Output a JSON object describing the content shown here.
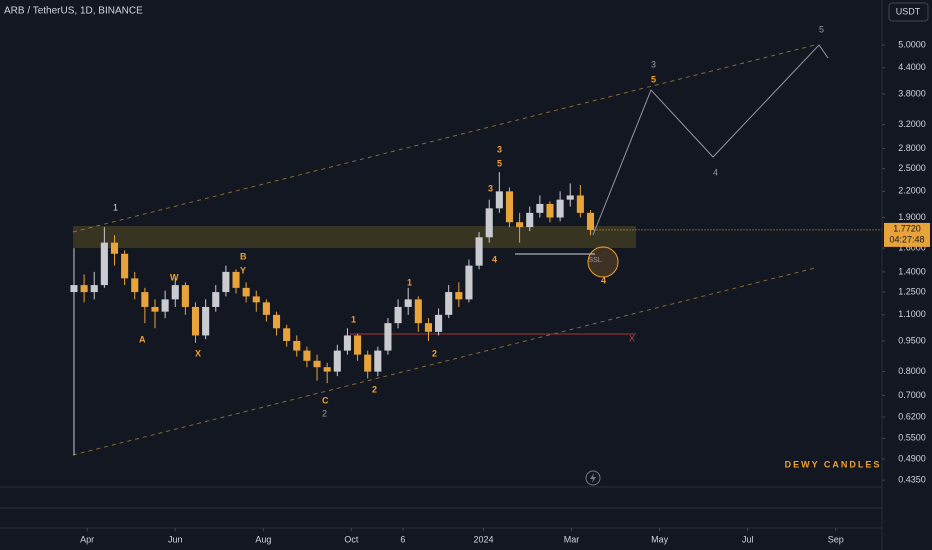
{
  "header": {
    "symbol": "ARB / TetherUS, 1D, BINANCE",
    "currency_button": "USDT"
  },
  "chart_data": {
    "type": "candlestick",
    "log_scale": true,
    "x": [
      -0.3,
      -0.07,
      0.16,
      0.39,
      0.62,
      0.85,
      1.08,
      1.31,
      1.54,
      1.77,
      2.0,
      2.23,
      2.46,
      2.69,
      2.92,
      3.15,
      3.38,
      3.61,
      3.84,
      4.07,
      4.3,
      4.53,
      4.76,
      4.99,
      5.22,
      5.45,
      5.68,
      5.91,
      6.14,
      6.37,
      6.6,
      6.83,
      7.06,
      7.29,
      7.52,
      7.75,
      7.98,
      8.21,
      8.44,
      8.67,
      8.9,
      9.13,
      9.36,
      9.59,
      9.82,
      10.05,
      10.28,
      10.51,
      10.74,
      10.97,
      11.2,
      11.43
    ],
    "open": [
      1.25,
      1.3,
      1.25,
      1.3,
      1.65,
      1.55,
      1.35,
      1.25,
      1.15,
      1.12,
      1.2,
      1.3,
      1.15,
      0.98,
      1.15,
      1.25,
      1.4,
      1.28,
      1.22,
      1.18,
      1.1,
      1.02,
      0.95,
      0.9,
      0.85,
      0.82,
      0.8,
      0.9,
      0.98,
      0.88,
      0.8,
      0.9,
      1.05,
      1.15,
      1.2,
      1.05,
      1.0,
      1.1,
      1.25,
      1.2,
      1.45,
      1.7,
      2.0,
      2.2,
      1.85,
      1.8,
      1.95,
      2.05,
      1.9,
      2.1,
      2.15,
      1.95
    ],
    "high": [
      1.6,
      1.38,
      1.4,
      1.8,
      1.72,
      1.58,
      1.4,
      1.28,
      1.2,
      1.26,
      1.36,
      1.32,
      1.18,
      1.2,
      1.3,
      1.45,
      1.42,
      1.32,
      1.26,
      1.2,
      1.12,
      1.04,
      0.98,
      0.92,
      0.88,
      0.84,
      0.93,
      1.02,
      0.99,
      0.9,
      0.92,
      1.08,
      1.2,
      1.28,
      1.22,
      1.08,
      1.14,
      1.3,
      1.32,
      1.5,
      1.75,
      2.1,
      2.45,
      2.25,
      1.95,
      2.02,
      2.15,
      2.08,
      2.2,
      2.3,
      2.28,
      1.98
    ],
    "low": [
      0.5,
      1.18,
      1.2,
      1.28,
      1.45,
      1.3,
      1.2,
      1.05,
      1.02,
      1.08,
      1.15,
      1.1,
      0.94,
      0.96,
      1.12,
      1.22,
      1.24,
      1.18,
      1.12,
      1.06,
      0.98,
      0.92,
      0.87,
      0.82,
      0.76,
      0.75,
      0.78,
      0.88,
      0.85,
      0.77,
      0.78,
      0.88,
      1.02,
      1.1,
      1.0,
      0.95,
      0.98,
      1.08,
      1.15,
      1.18,
      1.42,
      1.65,
      1.95,
      1.8,
      1.65,
      1.76,
      1.9,
      1.85,
      1.86,
      2.02,
      1.9,
      1.72
    ],
    "close": [
      1.3,
      1.25,
      1.3,
      1.65,
      1.55,
      1.35,
      1.25,
      1.15,
      1.12,
      1.2,
      1.3,
      1.15,
      0.98,
      1.15,
      1.25,
      1.4,
      1.28,
      1.22,
      1.18,
      1.1,
      1.02,
      0.95,
      0.9,
      0.85,
      0.82,
      0.8,
      0.9,
      0.98,
      0.88,
      0.8,
      0.9,
      1.05,
      1.15,
      1.2,
      1.05,
      1.0,
      1.1,
      1.25,
      1.2,
      1.45,
      1.7,
      2.0,
      2.2,
      1.85,
      1.8,
      1.95,
      2.05,
      1.9,
      2.1,
      2.15,
      1.95,
      1.772
    ],
    "up_color": "#c9cbd1",
    "down_color": "#e8a33a",
    "xlim": [
      -1.98,
      18.05
    ],
    "xticks": [
      {
        "value": 0,
        "label": "Apr"
      },
      {
        "value": 2,
        "label": "Jun"
      },
      {
        "value": 4,
        "label": "Aug"
      },
      {
        "value": 6,
        "label": "Oct"
      },
      {
        "value": 7.17,
        "label": "6"
      },
      {
        "value": 9,
        "label": "2024"
      },
      {
        "value": 11,
        "label": "Mar"
      },
      {
        "value": 13,
        "label": "May"
      },
      {
        "value": 15,
        "label": "Jul"
      },
      {
        "value": 17,
        "label": "Sep"
      }
    ],
    "ylim": [
      0.4186,
      6.44
    ],
    "yticks": [
      {
        "value": 5,
        "label": "5.0000"
      },
      {
        "value": 4.4,
        "label": "4.4000"
      },
      {
        "value": 3.8,
        "label": "3.8000"
      },
      {
        "value": 3.2,
        "label": "3.2000"
      },
      {
        "value": 2.8,
        "label": "2.8000"
      },
      {
        "value": 2.5,
        "label": "2.5000"
      },
      {
        "value": 2.2,
        "label": "2.2000"
      },
      {
        "value": 1.9,
        "label": "1.9000"
      },
      {
        "value": 1.6,
        "label": "1.6000"
      },
      {
        "value": 1.4,
        "label": "1.4000"
      },
      {
        "value": 1.25,
        "label": "1.2500"
      },
      {
        "value": 1.1,
        "label": "1.1000"
      },
      {
        "value": 0.95,
        "label": "0.9500"
      },
      {
        "value": 0.8,
        "label": "0.8000"
      },
      {
        "value": 0.7,
        "label": "0.7000"
      },
      {
        "value": 0.62,
        "label": "0.6200"
      },
      {
        "value": 0.55,
        "label": "0.5500"
      },
      {
        "value": 0.49,
        "label": "0.4900"
      },
      {
        "value": 0.435,
        "label": "0.4350"
      }
    ],
    "current_price": {
      "value": 1.772,
      "label": "1.7720"
    },
    "countdown": "04:27:48",
    "annotations": [
      "1",
      "A",
      "W",
      "X",
      "B",
      "Y",
      "C",
      "2",
      "1",
      "2",
      "1",
      "2",
      "3",
      "5",
      "3",
      "4",
      "SSL",
      "4",
      "3",
      "5",
      "4",
      "5",
      "X",
      "DEWY CANDLES"
    ]
  }
}
